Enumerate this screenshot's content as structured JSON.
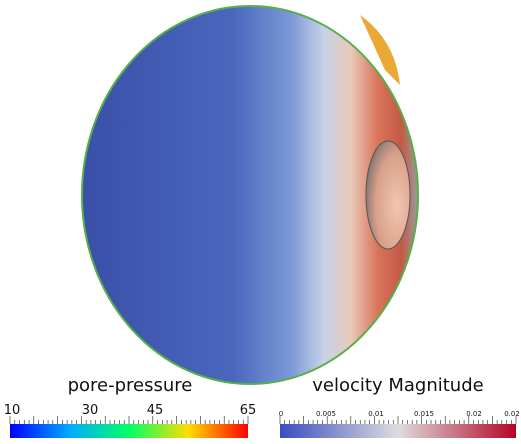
{
  "colorbars": [
    {
      "title": "pore-pressure",
      "tick_labels": [
        "10",
        "30",
        "45",
        "65"
      ]
    },
    {
      "title": "velocity Magnitude",
      "tick_labels": [
        "0",
        "0.005",
        "0.01",
        "0.015",
        "0.02",
        "0.02"
      ]
    }
  ]
}
